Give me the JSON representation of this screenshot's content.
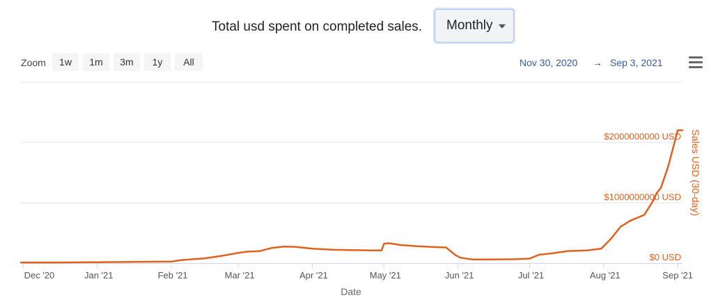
{
  "header": {
    "title": "Total usd spent on completed sales.",
    "period_select": {
      "value": "Monthly"
    }
  },
  "zoom": {
    "label": "Zoom",
    "buttons": [
      "1w",
      "1m",
      "3m",
      "1y",
      "All"
    ]
  },
  "range": {
    "from": "Nov 30, 2020",
    "arrow": "→",
    "to": "Sep 3, 2021"
  },
  "colors": {
    "series": "#e0601f",
    "grid": "#e6e6e6",
    "range_text": "#335cad"
  },
  "chart_data": {
    "type": "line",
    "title": "Total usd spent on completed sales.",
    "xlabel": "Date",
    "ylabel": "Sales USD (30-day)",
    "x_ticks": [
      "Dec '20",
      "Jan '21",
      "Feb '21",
      "Mar '21",
      "Apr '21",
      "May '21",
      "Jun '21",
      "Jul '21",
      "Aug '21",
      "Sep '21"
    ],
    "x_range": [
      "2020-11-30",
      "2021-09-03"
    ],
    "y_ticks": [
      {
        "value": 0,
        "label": "$0 USD"
      },
      {
        "value": 1000000000,
        "label": "$1000000000 USD"
      },
      {
        "value": 2000000000,
        "label": "$2000000000 USD"
      }
    ],
    "ylim": [
      0,
      3000000000
    ],
    "y_axis_position": "right",
    "grid": true,
    "series": [
      {
        "x": [
          "2020-11-30",
          "2020-12-15",
          "2021-01-01",
          "2021-01-15",
          "2021-02-01",
          "2021-02-05",
          "2021-02-15",
          "2021-02-22",
          "2021-03-01",
          "2021-03-05",
          "2021-03-10",
          "2021-03-15",
          "2021-03-20",
          "2021-03-25",
          "2021-04-01",
          "2021-04-10",
          "2021-04-20",
          "2021-04-26",
          "2021-04-30",
          "2021-05-01",
          "2021-05-03",
          "2021-05-08",
          "2021-05-15",
          "2021-05-20",
          "2021-05-27",
          "2021-05-31",
          "2021-06-02",
          "2021-06-07",
          "2021-06-15",
          "2021-06-25",
          "2021-07-01",
          "2021-07-05",
          "2021-07-10",
          "2021-07-17",
          "2021-07-25",
          "2021-07-31",
          "2021-08-04",
          "2021-08-08",
          "2021-08-12",
          "2021-08-15",
          "2021-08-18",
          "2021-08-22",
          "2021-08-23",
          "2021-08-25",
          "2021-08-28",
          "2021-08-30",
          "2021-09-01",
          "2021-09-03"
        ],
        "y": [
          10000000,
          10000000,
          15000000,
          20000000,
          25000000,
          50000000,
          80000000,
          120000000,
          170000000,
          190000000,
          200000000,
          250000000,
          275000000,
          270000000,
          240000000,
          220000000,
          215000000,
          210000000,
          210000000,
          320000000,
          330000000,
          300000000,
          280000000,
          270000000,
          260000000,
          130000000,
          90000000,
          60000000,
          60000000,
          65000000,
          75000000,
          140000000,
          160000000,
          200000000,
          210000000,
          240000000,
          400000000,
          600000000,
          700000000,
          750000000,
          800000000,
          1050000000,
          1150000000,
          1250000000,
          1600000000,
          1900000000,
          2200000000,
          2200000000
        ]
      }
    ]
  }
}
